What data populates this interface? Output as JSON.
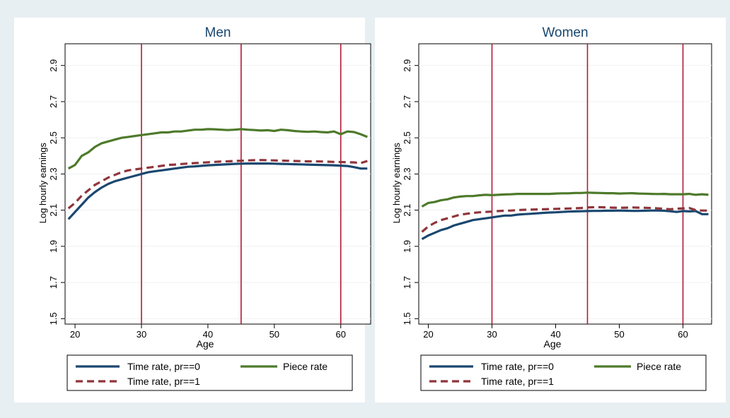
{
  "chart_data": [
    {
      "type": "line",
      "title": "Men",
      "xlabel": "Age",
      "ylabel": "Log hourly earnings",
      "xlim": [
        18.5,
        64.5
      ],
      "ylim": [
        1.47,
        3.02
      ],
      "xticks": [
        20,
        30,
        40,
        50,
        60
      ],
      "yticks": [
        1.5,
        1.7,
        1.9,
        2.1,
        2.3,
        2.5,
        2.7,
        2.9
      ],
      "ytick_labels": [
        "1.5",
        "1.7",
        "1.9",
        "2.1",
        "2.3",
        "2.5",
        "2.7",
        "2.9"
      ],
      "grid": true,
      "vlines": [
        30,
        45,
        60
      ],
      "x": [
        19,
        20,
        21,
        22,
        23,
        24,
        25,
        26,
        27,
        28,
        29,
        30,
        31,
        32,
        33,
        34,
        35,
        36,
        37,
        38,
        39,
        40,
        41,
        42,
        43,
        44,
        45,
        46,
        47,
        48,
        49,
        50,
        51,
        52,
        53,
        54,
        55,
        56,
        57,
        58,
        59,
        60,
        61,
        62,
        63,
        64
      ],
      "series": [
        {
          "name": "Time rate, pr==0",
          "color": "#1a476f",
          "dash": "solid",
          "values": [
            2.05,
            2.09,
            2.13,
            2.17,
            2.2,
            2.225,
            2.245,
            2.26,
            2.27,
            2.28,
            2.29,
            2.3,
            2.31,
            2.315,
            2.32,
            2.325,
            2.33,
            2.335,
            2.34,
            2.342,
            2.345,
            2.348,
            2.35,
            2.352,
            2.354,
            2.356,
            2.357,
            2.358,
            2.358,
            2.358,
            2.358,
            2.357,
            2.356,
            2.355,
            2.354,
            2.353,
            2.352,
            2.351,
            2.35,
            2.349,
            2.348,
            2.346,
            2.344,
            2.338,
            2.33,
            2.33
          ]
        },
        {
          "name": "Piece rate",
          "color": "#4e7a2b",
          "dash": "solid",
          "values": [
            2.33,
            2.35,
            2.4,
            2.42,
            2.45,
            2.47,
            2.48,
            2.49,
            2.5,
            2.505,
            2.51,
            2.515,
            2.52,
            2.525,
            2.53,
            2.53,
            2.535,
            2.535,
            2.54,
            2.545,
            2.545,
            2.548,
            2.547,
            2.545,
            2.543,
            2.545,
            2.548,
            2.545,
            2.543,
            2.54,
            2.542,
            2.538,
            2.545,
            2.542,
            2.538,
            2.535,
            2.533,
            2.535,
            2.532,
            2.53,
            2.535,
            2.52,
            2.535,
            2.532,
            2.52,
            2.505
          ]
        },
        {
          "name": "Time rate, pr==1",
          "color": "#90353b",
          "dash": "dashed",
          "values": [
            2.11,
            2.14,
            2.18,
            2.21,
            2.24,
            2.26,
            2.28,
            2.295,
            2.31,
            2.32,
            2.325,
            2.33,
            2.335,
            2.34,
            2.345,
            2.35,
            2.352,
            2.355,
            2.358,
            2.36,
            2.362,
            2.365,
            2.367,
            2.369,
            2.37,
            2.372,
            2.373,
            2.375,
            2.376,
            2.377,
            2.376,
            2.375,
            2.374,
            2.373,
            2.372,
            2.371,
            2.37,
            2.37,
            2.369,
            2.368,
            2.367,
            2.366,
            2.365,
            2.364,
            2.36,
            2.372
          ]
        }
      ],
      "legend": "bottom",
      "legend_entries": [
        "Time rate, pr==0",
        "Piece rate",
        "Time rate, pr==1"
      ]
    },
    {
      "type": "line",
      "title": "Women",
      "xlabel": "Age",
      "ylabel": "Log hourly earnings",
      "xlim": [
        18.5,
        64.5
      ],
      "ylim": [
        1.47,
        3.02
      ],
      "xticks": [
        20,
        30,
        40,
        50,
        60
      ],
      "yticks": [
        1.5,
        1.7,
        1.9,
        2.1,
        2.3,
        2.5,
        2.7,
        2.9
      ],
      "ytick_labels": [
        "1.5",
        "1.7",
        "1.9",
        "2.1",
        "2.3",
        "2.5",
        "2.7",
        "2.9"
      ],
      "grid": true,
      "vlines": [
        30,
        45,
        60
      ],
      "x": [
        19,
        20,
        21,
        22,
        23,
        24,
        25,
        26,
        27,
        28,
        29,
        30,
        31,
        32,
        33,
        34,
        35,
        36,
        37,
        38,
        39,
        40,
        41,
        42,
        43,
        44,
        45,
        46,
        47,
        48,
        49,
        50,
        51,
        52,
        53,
        54,
        55,
        56,
        57,
        58,
        59,
        60,
        61,
        62,
        63,
        64
      ],
      "series": [
        {
          "name": "Time rate, pr==0",
          "color": "#1a476f",
          "dash": "solid",
          "values": [
            1.94,
            1.96,
            1.975,
            1.99,
            2.0,
            2.015,
            2.025,
            2.035,
            2.045,
            2.05,
            2.055,
            2.06,
            2.065,
            2.07,
            2.07,
            2.075,
            2.078,
            2.08,
            2.082,
            2.085,
            2.087,
            2.088,
            2.09,
            2.092,
            2.093,
            2.094,
            2.095,
            2.096,
            2.096,
            2.097,
            2.097,
            2.098,
            2.097,
            2.096,
            2.096,
            2.097,
            2.098,
            2.098,
            2.097,
            2.094,
            2.09,
            2.095,
            2.093,
            2.095,
            2.078,
            2.078
          ]
        },
        {
          "name": "Piece rate",
          "color": "#4e7a2b",
          "dash": "solid",
          "values": [
            2.12,
            2.14,
            2.145,
            2.155,
            2.16,
            2.17,
            2.175,
            2.178,
            2.178,
            2.182,
            2.185,
            2.183,
            2.185,
            2.187,
            2.188,
            2.19,
            2.19,
            2.19,
            2.19,
            2.19,
            2.19,
            2.192,
            2.193,
            2.193,
            2.195,
            2.195,
            2.197,
            2.196,
            2.195,
            2.194,
            2.194,
            2.192,
            2.193,
            2.194,
            2.192,
            2.191,
            2.19,
            2.189,
            2.19,
            2.188,
            2.188,
            2.188,
            2.19,
            2.185,
            2.188,
            2.185
          ]
        },
        {
          "name": "Time rate, pr==1",
          "color": "#90353b",
          "dash": "dashed",
          "values": [
            1.98,
            2.01,
            2.03,
            2.045,
            2.055,
            2.065,
            2.075,
            2.08,
            2.085,
            2.088,
            2.09,
            2.092,
            2.095,
            2.097,
            2.098,
            2.1,
            2.102,
            2.103,
            2.104,
            2.105,
            2.106,
            2.107,
            2.108,
            2.109,
            2.11,
            2.112,
            2.115,
            2.116,
            2.116,
            2.115,
            2.114,
            2.113,
            2.114,
            2.115,
            2.114,
            2.113,
            2.112,
            2.11,
            2.108,
            2.105,
            2.108,
            2.11,
            2.112,
            2.1,
            2.098,
            2.098
          ]
        }
      ],
      "legend": "bottom",
      "legend_entries": [
        "Time rate, pr==0",
        "Piece rate",
        "Time rate, pr==1"
      ]
    }
  ]
}
